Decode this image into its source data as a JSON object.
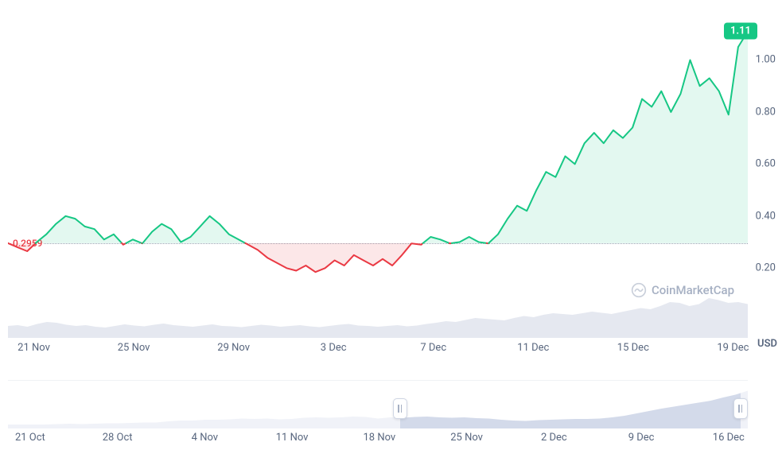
{
  "chart": {
    "type": "line",
    "currency": "USD",
    "current_price_label": "1.11",
    "current_price_value": 1.11,
    "reference_label": "0.2959",
    "reference_value": 0.2959,
    "ylim": [
      0.1,
      1.2
    ],
    "y_ticks": [
      0.2,
      0.4,
      0.6,
      0.8,
      1.0
    ],
    "y_tick_labels": [
      "0.20",
      "0.40",
      "0.60",
      "0.80",
      "1.00"
    ],
    "x_tick_labels": [
      "21 Nov",
      "25 Nov",
      "29 Nov",
      "3 Dec",
      "7 Dec",
      "11 Dec",
      "15 Dec",
      "19 Dec"
    ],
    "x_tick_positions_pct": [
      3.5,
      17,
      30.5,
      44,
      57.5,
      71,
      84.5,
      98
    ],
    "colors": {
      "up_line": "#16c784",
      "down_line": "#ea3943",
      "up_fill": "rgba(22,199,132,0.12)",
      "down_fill": "rgba(234,57,67,0.12)",
      "grid": "#eff2f5",
      "ref_dotted": "#9aa3b2",
      "text": "#58667e",
      "volume_fill": "#cfd6e4",
      "range_fill": "#a8b6d6",
      "background": "#ffffff"
    },
    "line_width": 2,
    "series": [
      [
        0,
        0.296
      ],
      [
        2,
        0.28
      ],
      [
        4,
        0.265
      ],
      [
        6,
        0.3
      ],
      [
        8,
        0.33
      ],
      [
        10,
        0.37
      ],
      [
        12,
        0.4
      ],
      [
        14,
        0.39
      ],
      [
        16,
        0.36
      ],
      [
        18,
        0.35
      ],
      [
        20,
        0.31
      ],
      [
        22,
        0.33
      ],
      [
        24,
        0.29
      ],
      [
        26,
        0.31
      ],
      [
        28,
        0.295
      ],
      [
        30,
        0.34
      ],
      [
        32,
        0.37
      ],
      [
        34,
        0.35
      ],
      [
        36,
        0.3
      ],
      [
        38,
        0.32
      ],
      [
        40,
        0.36
      ],
      [
        42,
        0.4
      ],
      [
        44,
        0.37
      ],
      [
        46,
        0.33
      ],
      [
        48,
        0.31
      ],
      [
        50,
        0.29
      ],
      [
        52,
        0.27
      ],
      [
        54,
        0.24
      ],
      [
        56,
        0.22
      ],
      [
        58,
        0.2
      ],
      [
        60,
        0.19
      ],
      [
        62,
        0.21
      ],
      [
        64,
        0.185
      ],
      [
        66,
        0.2
      ],
      [
        68,
        0.23
      ],
      [
        70,
        0.21
      ],
      [
        72,
        0.25
      ],
      [
        74,
        0.23
      ],
      [
        76,
        0.21
      ],
      [
        78,
        0.235
      ],
      [
        80,
        0.21
      ],
      [
        82,
        0.25
      ],
      [
        84,
        0.295
      ],
      [
        86,
        0.29
      ],
      [
        88,
        0.32
      ],
      [
        90,
        0.31
      ],
      [
        92,
        0.295
      ],
      [
        94,
        0.3
      ],
      [
        96,
        0.32
      ],
      [
        98,
        0.3
      ],
      [
        100,
        0.295
      ],
      [
        102,
        0.33
      ],
      [
        104,
        0.39
      ],
      [
        106,
        0.44
      ],
      [
        108,
        0.42
      ],
      [
        110,
        0.5
      ],
      [
        112,
        0.57
      ],
      [
        114,
        0.55
      ],
      [
        116,
        0.63
      ],
      [
        118,
        0.6
      ],
      [
        120,
        0.68
      ],
      [
        122,
        0.72
      ],
      [
        124,
        0.68
      ],
      [
        126,
        0.73
      ],
      [
        128,
        0.7
      ],
      [
        130,
        0.74
      ],
      [
        132,
        0.85
      ],
      [
        134,
        0.82
      ],
      [
        136,
        0.88
      ],
      [
        138,
        0.8
      ],
      [
        140,
        0.87
      ],
      [
        142,
        1.0
      ],
      [
        144,
        0.9
      ],
      [
        146,
        0.93
      ],
      [
        148,
        0.88
      ],
      [
        150,
        0.79
      ],
      [
        152,
        1.05
      ],
      [
        154,
        1.11
      ]
    ],
    "volume": [
      0.3,
      0.32,
      0.28,
      0.35,
      0.4,
      0.38,
      0.33,
      0.3,
      0.32,
      0.28,
      0.26,
      0.3,
      0.34,
      0.31,
      0.29,
      0.33,
      0.36,
      0.32,
      0.3,
      0.28,
      0.31,
      0.34,
      0.3,
      0.29,
      0.27,
      0.3,
      0.33,
      0.31,
      0.28,
      0.3,
      0.32,
      0.29,
      0.27,
      0.3,
      0.33,
      0.35,
      0.31,
      0.3,
      0.28,
      0.3,
      0.32,
      0.29,
      0.31,
      0.35,
      0.38,
      0.42,
      0.4,
      0.45,
      0.5,
      0.48,
      0.46,
      0.44,
      0.5,
      0.55,
      0.52,
      0.58,
      0.62,
      0.6,
      0.58,
      0.62,
      0.66,
      0.63,
      0.6,
      0.65,
      0.7,
      0.75,
      0.72,
      0.8,
      0.9,
      0.88,
      0.8,
      0.85,
      1.0,
      0.95,
      0.88,
      0.9,
      0.85
    ]
  },
  "range": {
    "x_tick_labels": [
      "21 Oct",
      "28 Oct",
      "4 Nov",
      "11 Nov",
      "18 Nov",
      "25 Nov",
      "2 Dec",
      "9 Dec",
      "16 Dec"
    ],
    "x_tick_positions_pct": [
      3,
      14.8,
      26.6,
      38.4,
      50.2,
      62,
      73.8,
      85.6,
      97.4
    ],
    "selected_start_pct": 53,
    "selected_end_pct": 99,
    "series": [
      0.1,
      0.1,
      0.1,
      0.1,
      0.11,
      0.12,
      0.11,
      0.12,
      0.13,
      0.13,
      0.14,
      0.15,
      0.15,
      0.18,
      0.2,
      0.2,
      0.22,
      0.22,
      0.23,
      0.25,
      0.24,
      0.25,
      0.23,
      0.24,
      0.27,
      0.28,
      0.27,
      0.28,
      0.3,
      0.29,
      0.25,
      0.28,
      0.27,
      0.29,
      0.3,
      0.28,
      0.27,
      0.28,
      0.26,
      0.25,
      0.22,
      0.2,
      0.19,
      0.21,
      0.22,
      0.23,
      0.24,
      0.24,
      0.25,
      0.28,
      0.32,
      0.38,
      0.44,
      0.5,
      0.55,
      0.6,
      0.65,
      0.7,
      0.78,
      0.85,
      0.95
    ]
  },
  "watermark": {
    "text": "CoinMarketCap"
  }
}
